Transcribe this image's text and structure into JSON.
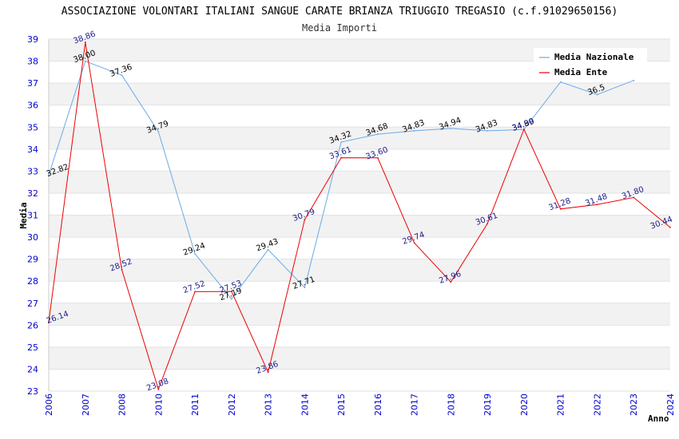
{
  "chart_data": {
    "type": "line",
    "title": "ASSOCIAZIONE VOLONTARI ITALIANI SANGUE CARATE BRIANZA TRIUGGIO TREGASIO (c.f.91029650156)",
    "subtitle": "Media Importi",
    "xlabel": "Anno",
    "ylabel": "Media",
    "ylim": [
      23,
      39
    ],
    "yticks": [
      "23",
      "24",
      "25",
      "26",
      "27",
      "28",
      "29",
      "30",
      "31",
      "32",
      "33",
      "34",
      "35",
      "36",
      "37",
      "38",
      "39"
    ],
    "categories": [
      "2006",
      "2007",
      "2008",
      "2010",
      "2011",
      "2012",
      "2013",
      "2014",
      "2015",
      "2016",
      "2017",
      "2018",
      "2019",
      "2020",
      "2021",
      "2022",
      "2023",
      "2024"
    ],
    "legend_position": "top-right",
    "series": [
      {
        "name": "Media Nazionale",
        "color": "#6aaae8",
        "label_color": "#000000",
        "values": [
          32.82,
          38.0,
          37.36,
          34.79,
          29.24,
          27.19,
          29.43,
          27.71,
          34.32,
          34.68,
          34.83,
          34.94,
          34.83,
          34.89,
          37.05,
          36.48,
          37.12,
          null
        ],
        "labels": [
          "32.82",
          "38.00",
          "37.36",
          "34.79",
          "29.24",
          "27.19",
          "29.43",
          "27.71",
          "34.32",
          "34.68",
          "34.83",
          "34.94",
          "34.83",
          "34.89",
          "",
          "36.5",
          "",
          ""
        ]
      },
      {
        "name": "Media Ente",
        "color": "#ee0000",
        "label_color": "#1a1a8c",
        "values": [
          26.14,
          38.86,
          28.52,
          23.08,
          27.52,
          27.53,
          23.86,
          30.79,
          33.61,
          33.6,
          29.74,
          27.96,
          30.61,
          34.9,
          31.28,
          31.48,
          31.8,
          30.44
        ],
        "labels": [
          "26.14",
          "38.86",
          "28.52",
          "23.08",
          "27.52",
          "27.53",
          "23.86",
          "30.79",
          "33.61",
          "33.60",
          "29.74",
          "27.96",
          "30.61",
          "34.90",
          "31.28",
          "31.48",
          "31.80",
          "30.44"
        ]
      }
    ]
  }
}
